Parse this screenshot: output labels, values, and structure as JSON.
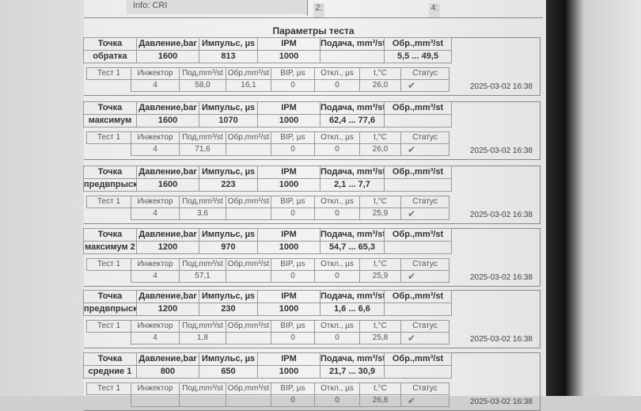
{
  "header": {
    "info_label": "Info:",
    "info_value": "CRI",
    "slot_2": "2:",
    "slot_4": "4:"
  },
  "title": "Параметры теста",
  "point_headers": [
    "Точка",
    "Давление,bar",
    "Импульс, µs",
    "IPM",
    "Подача, mm³/st",
    "Обр.,mm³/st"
  ],
  "test_headers": [
    "Инжектор",
    "Под,mm³/st",
    "Обр,mm³/st",
    "BIP, µs",
    "Откл., µs",
    "t,°C",
    "Статус"
  ],
  "blocks": [
    {
      "point": "обратка",
      "pressure": "1600",
      "pulse": "813",
      "ipm": "1000",
      "feed": "",
      "return": "5,5 ... 49,5",
      "test": {
        "label": "Тест 1",
        "injector": "4",
        "feed": "58,0",
        "return": "16,1",
        "bip": "0",
        "dev": "0",
        "temp": "26,0",
        "status": "ok"
      },
      "date": "2025-03-02 16:38"
    },
    {
      "point": "максимум",
      "pressure": "1600",
      "pulse": "1070",
      "ipm": "1000",
      "feed": "62,4 ... 77,6",
      "return": "",
      "test": {
        "label": "Тест 1",
        "injector": "4",
        "feed": "71,6",
        "return": "",
        "bip": "0",
        "dev": "0",
        "temp": "26,0",
        "status": "ok"
      },
      "date": "2025-03-02 16:38"
    },
    {
      "point": "предвпрыск",
      "pressure": "1600",
      "pulse": "223",
      "ipm": "1000",
      "feed": "2,1 ... 7,7",
      "return": "",
      "test": {
        "label": "Тест 1",
        "injector": "4",
        "feed": "3,6",
        "return": "",
        "bip": "0",
        "dev": "0",
        "temp": "25,9",
        "status": "ok"
      },
      "date": "2025-03-02 16:38"
    },
    {
      "point": "максимум 2",
      "pressure": "1200",
      "pulse": "970",
      "ipm": "1000",
      "feed": "54,7 ... 65,3",
      "return": "",
      "test": {
        "label": "Тест 1",
        "injector": "4",
        "feed": "57,1",
        "return": "",
        "bip": "0",
        "dev": "0",
        "temp": "25,9",
        "status": "ok"
      },
      "date": "2025-03-02 16:38"
    },
    {
      "point": "предвпрыск",
      "pressure": "1200",
      "pulse": "230",
      "ipm": "1000",
      "feed": "1,6 ... 6,6",
      "return": "",
      "test": {
        "label": "Тест 1",
        "injector": "4",
        "feed": "1,8",
        "return": "",
        "bip": "0",
        "dev": "0",
        "temp": "25,8",
        "status": "ok"
      },
      "date": "2025-03-02 16:38"
    },
    {
      "point": "средние 1",
      "pressure": "800",
      "pulse": "650",
      "ipm": "1000",
      "feed": "21,7 ... 30,9",
      "return": "",
      "test": {
        "label": "Тест 1",
        "injector": "",
        "feed": "",
        "return": "",
        "bip": "0",
        "dev": "0",
        "temp": "26,8",
        "status": "ok"
      },
      "date": "2025-03-02 16:38"
    }
  ]
}
